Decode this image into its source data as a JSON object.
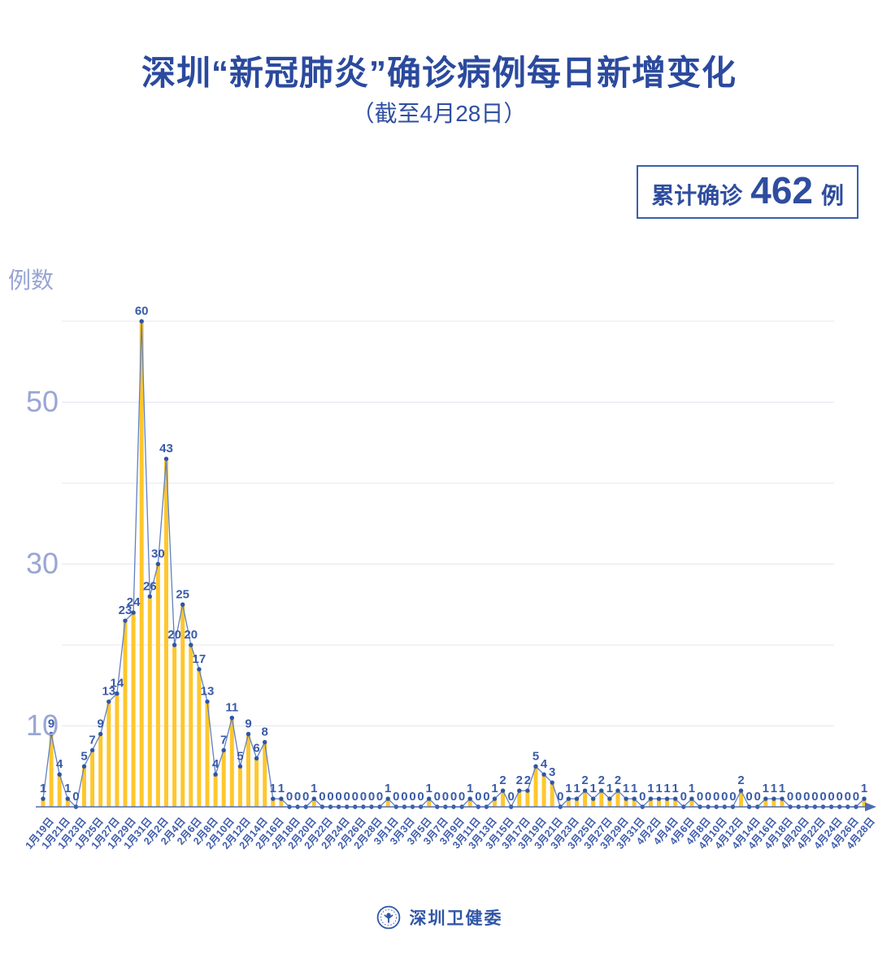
{
  "header": {
    "title": "深圳“新冠肺炎”确诊病例每日新增变化",
    "subtitle": "（截至4月28日）",
    "badge": {
      "label": "累计确诊",
      "value": "462",
      "unit": "例"
    }
  },
  "chart_data": {
    "type": "bar",
    "title": "深圳新冠肺炎确诊病例每日新增变化（截至4月28日）",
    "ylabel": "例数",
    "ylim": [
      0,
      60
    ],
    "grid_step": 10,
    "grid_on": true,
    "y_tick_labels": [
      "10",
      "30",
      "50"
    ],
    "x_tick_every": 2,
    "x_tick_labels": [
      "1月19日",
      "1月21日",
      "1月23日",
      "1月25日",
      "1月27日",
      "1月29日",
      "1月31日",
      "2月2日",
      "2月4日",
      "2月6日",
      "2月8日",
      "2月10日",
      "2月12日",
      "2月14日",
      "2月16日",
      "2月18日",
      "2月20日",
      "2月22日",
      "2月24日",
      "2月26日",
      "2月28日",
      "3月1日",
      "3月3日",
      "3月5日",
      "3月7日",
      "3月9日",
      "3月11日",
      "3月13日",
      "3月15日",
      "3月17日",
      "3月19日",
      "3月21日",
      "3月23日",
      "3月25日",
      "3月27日",
      "3月29日",
      "3月31日",
      "4月2日",
      "4月4日",
      "4月6日",
      "4月8日",
      "4月10日",
      "4月12日",
      "4月14日",
      "4月16日",
      "4月18日",
      "4月20日",
      "4月22日",
      "4月24日",
      "4月26日",
      "4月28日"
    ],
    "values": [
      1,
      9,
      4,
      1,
      0,
      5,
      7,
      9,
      13,
      14,
      23,
      24,
      60,
      26,
      30,
      43,
      20,
      25,
      20,
      17,
      13,
      4,
      7,
      11,
      5,
      9,
      6,
      8,
      1,
      1,
      0,
      0,
      0,
      1,
      0,
      0,
      0,
      0,
      0,
      0,
      0,
      0,
      1,
      0,
      0,
      0,
      0,
      1,
      0,
      0,
      0,
      0,
      1,
      0,
      0,
      1,
      2,
      0,
      2,
      2,
      5,
      4,
      3,
      0,
      1,
      1,
      2,
      1,
      2,
      1,
      2,
      1,
      1,
      0,
      1,
      1,
      1,
      1,
      0,
      1,
      0,
      0,
      0,
      0,
      0,
      2,
      0,
      0,
      1,
      1,
      1,
      0,
      0,
      0,
      0,
      0,
      0,
      0,
      0,
      0,
      1
    ],
    "cumulative_total": 462,
    "colors": {
      "bar": "#ffc72c",
      "line": "#6080c4",
      "dot": "#2e55a5",
      "point_label": "#3a5ba8",
      "axis": "#4f6cb2",
      "grid": "#e4e7ef",
      "y_tick": "#9aa6d4",
      "x_tick": "#3f5dab",
      "title": "#2b4a9e"
    }
  },
  "footer": {
    "brand": "深圳卫健委"
  }
}
